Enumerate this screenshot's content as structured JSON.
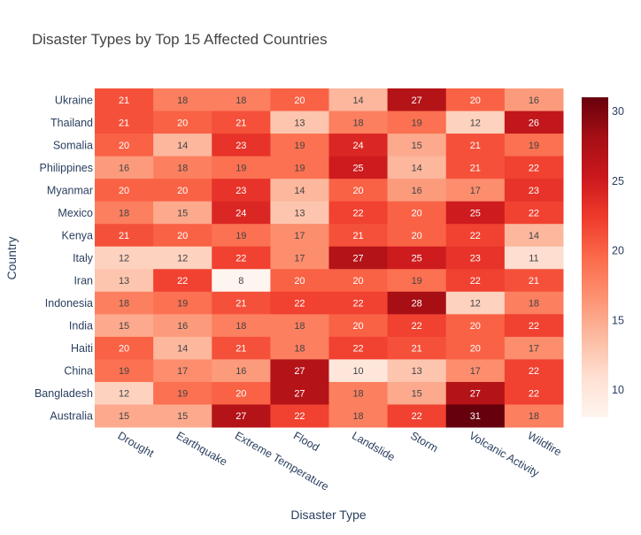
{
  "chart_data": {
    "type": "heatmap",
    "title": "Disaster Types by Top 15 Affected Countries",
    "xlabel": "Disaster Type",
    "ylabel": "Country",
    "x_categories": [
      "Drought",
      "Earthquake",
      "Extreme Temperature",
      "Flood",
      "Landslide",
      "Storm",
      "Volcanic Activity",
      "Wildfire"
    ],
    "y_categories": [
      "Ukraine",
      "Thailand",
      "Somalia",
      "Philippines",
      "Myanmar",
      "Mexico",
      "Kenya",
      "Italy",
      "Iran",
      "Indonesia",
      "India",
      "Haiti",
      "China",
      "Bangladesh",
      "Australia"
    ],
    "z": [
      [
        21,
        18,
        18,
        20,
        14,
        27,
        20,
        16
      ],
      [
        21,
        20,
        21,
        13,
        18,
        19,
        12,
        26
      ],
      [
        20,
        14,
        23,
        19,
        24,
        15,
        21,
        19
      ],
      [
        16,
        18,
        19,
        19,
        25,
        14,
        21,
        22
      ],
      [
        20,
        20,
        23,
        14,
        20,
        16,
        17,
        23
      ],
      [
        18,
        15,
        24,
        13,
        22,
        20,
        25,
        22
      ],
      [
        21,
        20,
        19,
        17,
        21,
        20,
        22,
        14
      ],
      [
        12,
        12,
        22,
        17,
        27,
        25,
        23,
        11
      ],
      [
        13,
        22,
        8,
        20,
        20,
        19,
        22,
        21
      ],
      [
        18,
        19,
        21,
        22,
        22,
        28,
        12,
        18
      ],
      [
        15,
        16,
        18,
        18,
        20,
        22,
        20,
        22
      ],
      [
        20,
        14,
        21,
        18,
        22,
        21,
        20,
        17
      ],
      [
        19,
        17,
        16,
        27,
        10,
        13,
        17,
        22
      ],
      [
        12,
        19,
        20,
        27,
        18,
        15,
        27,
        22
      ],
      [
        15,
        15,
        27,
        22,
        18,
        22,
        31,
        18
      ]
    ],
    "zmin": 8,
    "zmax": 31,
    "colorscale": "Reds",
    "colorbar_ticks": [
      10,
      15,
      20,
      25,
      30
    ],
    "colors": {
      "title": "#444444",
      "axis_text": "#2a3f5f",
      "label_dark": "#444444",
      "label_light": "#ffffff"
    }
  }
}
